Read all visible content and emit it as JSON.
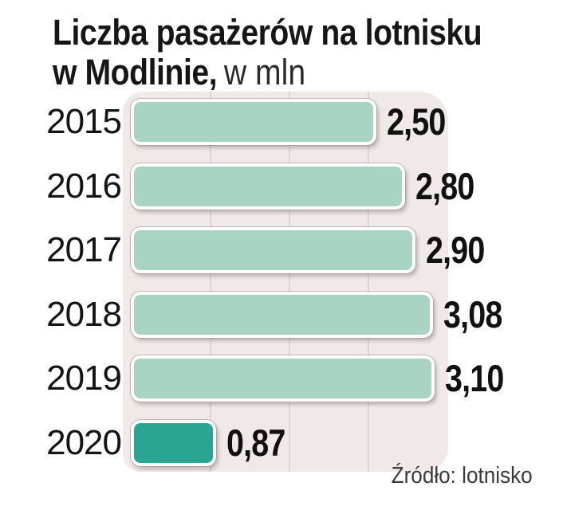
{
  "title": {
    "line1": "Liczba pasażerów na lotnisku",
    "line2_bold": "w Modlinie,",
    "line2_unit": "w mln"
  },
  "source": "Źródło: lotnisko",
  "colors": {
    "bar": "#a9d3c2",
    "bar_highlight": "#2ba593",
    "panel_bg": "#f1e9e8",
    "grid": "#ded3d2",
    "title_text": "#161616",
    "source_text": "#3a3a3a"
  },
  "chart_data": {
    "type": "bar",
    "orientation": "horizontal",
    "title": "Liczba pasażerów na lotnisku w Modlinie",
    "unit": "w mln",
    "categories": [
      "2015",
      "2016",
      "2017",
      "2018",
      "2019",
      "2020"
    ],
    "values": [
      2.5,
      2.8,
      2.9,
      3.08,
      3.1,
      0.87
    ],
    "value_labels": [
      "2,50",
      "2,80",
      "2,90",
      "3,08",
      "3,10",
      "0,87"
    ],
    "highlight_index": 5,
    "xlim": [
      0,
      3.3
    ],
    "grid": "vertical-faint",
    "source": "Źródło: lotnisko"
  }
}
